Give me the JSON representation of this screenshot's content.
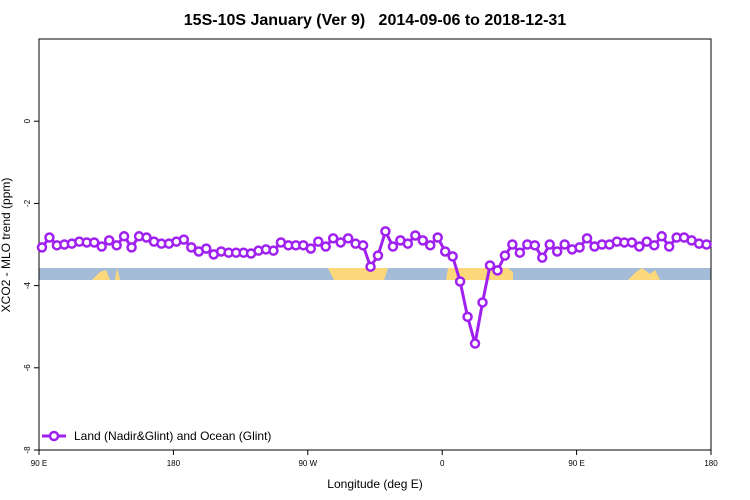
{
  "chart_data": {
    "type": "line",
    "title": "15S-10S January (Ver 9)   2014-09-06 to 2018-12-31",
    "x_label": "Longitude (deg E)",
    "y_label": "XCO2 - MLO trend (ppm)",
    "xlim": [
      90,
      540
    ],
    "ylim": [
      -8,
      2
    ],
    "xticks": [
      {
        "value": 90,
        "label": "90 E"
      },
      180,
      {
        "value": 270,
        "label": "90 W"
      },
      {
        "value": 360,
        "label": "0"
      },
      {
        "value": 450,
        "label": "90 E"
      },
      {
        "value": 540,
        "label": "180"
      }
    ],
    "yticks": [
      0,
      -2,
      -4,
      -6,
      -8
    ],
    "legend_position": "bottom-left",
    "x": [
      92,
      97,
      102,
      107,
      112,
      117,
      122,
      127,
      132,
      137,
      142,
      147,
      152,
      157,
      162,
      167,
      172,
      177,
      182,
      187,
      192,
      197,
      202,
      207,
      212,
      217,
      222,
      227,
      232,
      237,
      242,
      247,
      252,
      257,
      262,
      267,
      272,
      277,
      282,
      287,
      292,
      297,
      302,
      307,
      312,
      317,
      322,
      327,
      332,
      337,
      342,
      347,
      352,
      357,
      362,
      367,
      372,
      377,
      382,
      387,
      392,
      397,
      402,
      407,
      412,
      417,
      422,
      427,
      432,
      437,
      442,
      447,
      452,
      457,
      462,
      467,
      472,
      477,
      482,
      487,
      492,
      497,
      502,
      507,
      512,
      517,
      522,
      527,
      532,
      537
    ],
    "series": [
      {
        "name": "Land (Nadir&Glint) and Ocean (Glint)",
        "color": "#a020f0",
        "values": [
          -3.07,
          -2.83,
          -3.02,
          -3.0,
          -2.98,
          -2.93,
          -2.95,
          -2.95,
          -3.05,
          -2.9,
          -3.02,
          -2.8,
          -3.07,
          -2.8,
          -2.83,
          -2.93,
          -2.98,
          -2.98,
          -2.93,
          -2.88,
          -3.07,
          -3.17,
          -3.1,
          -3.24,
          -3.17,
          -3.2,
          -3.2,
          -3.2,
          -3.22,
          -3.15,
          -3.12,
          -3.15,
          -2.95,
          -3.02,
          -3.02,
          -3.02,
          -3.1,
          -2.93,
          -3.05,
          -2.85,
          -2.95,
          -2.85,
          -2.98,
          -3.02,
          -3.54,
          -3.27,
          -2.68,
          -3.05,
          -2.9,
          -2.98,
          -2.78,
          -2.9,
          -3.02,
          -2.83,
          -3.17,
          -3.29,
          -3.9,
          -4.76,
          -5.41,
          -4.41,
          -3.51,
          -3.63,
          -3.27,
          -3.0,
          -3.2,
          -3.0,
          -3.02,
          -3.32,
          -3.0,
          -3.17,
          -3.0,
          -3.12,
          -3.07,
          -2.85,
          -3.05,
          -3.0,
          -3.0,
          -2.93,
          -2.95,
          -2.95,
          -3.05,
          -2.93,
          -3.02,
          -2.8,
          -3.05,
          -2.83,
          -2.83,
          -2.9,
          -2.98,
          -3.0
        ]
      }
    ]
  }
}
